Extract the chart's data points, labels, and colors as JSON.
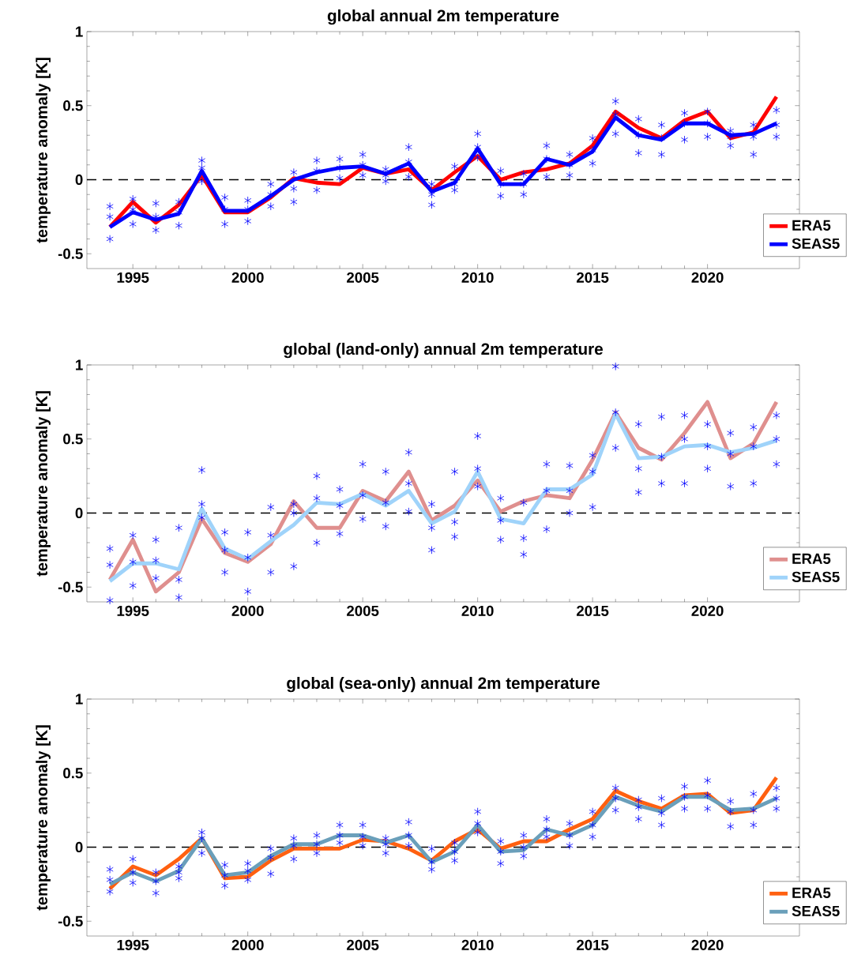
{
  "chart_data": [
    {
      "type": "line",
      "title": "global annual 2m temperature",
      "ylabel": "temperature anomaly  [K]",
      "x": [
        1994,
        1995,
        1996,
        1997,
        1998,
        1999,
        2000,
        2001,
        2002,
        2003,
        2004,
        2005,
        2006,
        2007,
        2008,
        2009,
        2010,
        2011,
        2012,
        2013,
        2014,
        2015,
        2016,
        2017,
        2018,
        2019,
        2020,
        2021,
        2022,
        2023
      ],
      "xlim": [
        1993,
        2024
      ],
      "ylim": [
        -0.6,
        1
      ],
      "xticks": [
        1995,
        2000,
        2005,
        2010,
        2015,
        2020
      ],
      "yticks": [
        -0.5,
        0,
        0.5,
        1
      ],
      "legend": "bottom right",
      "ref_lines": [
        {
          "axis": "y",
          "value": 0,
          "color": "#000000",
          "line_style": "dashed"
        }
      ],
      "series": [
        {
          "type": "scatter",
          "color": "#0000ff",
          "marker": "cross",
          "x": [
            1994,
            1994,
            1994,
            1995,
            1995,
            1995,
            1996,
            1996,
            1996,
            1997,
            1997,
            1997,
            1998,
            1998,
            1998,
            1999,
            1999,
            1999,
            2000,
            2000,
            2000,
            2001,
            2001,
            2001,
            2002,
            2002,
            2002,
            2003,
            2003,
            2003,
            2004,
            2004,
            2004,
            2005,
            2005,
            2005,
            2006,
            2006,
            2006,
            2007,
            2007,
            2007,
            2008,
            2008,
            2008,
            2009,
            2009,
            2009,
            2010,
            2010,
            2010,
            2011,
            2011,
            2011,
            2012,
            2012,
            2012,
            2013,
            2013,
            2013,
            2014,
            2014,
            2014,
            2015,
            2015,
            2015,
            2016,
            2016,
            2016,
            2017,
            2017,
            2017,
            2018,
            2018,
            2018,
            2019,
            2019,
            2019,
            2020,
            2020,
            2020,
            2021,
            2021,
            2021,
            2022,
            2022,
            2022,
            2023,
            2023,
            2023
          ],
          "values": [
            -0.18,
            -0.25,
            -0.4,
            -0.13,
            -0.2,
            -0.3,
            -0.16,
            -0.25,
            -0.34,
            -0.15,
            -0.22,
            -0.31,
            0.13,
            0.08,
            -0.01,
            -0.12,
            -0.2,
            -0.3,
            -0.14,
            -0.2,
            -0.28,
            -0.03,
            -0.1,
            -0.18,
            0.05,
            -0.06,
            -0.15,
            0.13,
            0.06,
            -0.07,
            0.14,
            0.08,
            0.01,
            0.17,
            0.1,
            0.03,
            0.07,
            0.03,
            -0.01,
            0.22,
            0.12,
            0.02,
            -0.03,
            -0.1,
            -0.17,
            0.09,
            -0.03,
            -0.07,
            0.31,
            0.22,
            0.15,
            0.06,
            -0.03,
            -0.11,
            0.04,
            -0.03,
            -0.1,
            0.23,
            0.14,
            0.02,
            0.17,
            0.1,
            0.03,
            0.28,
            0.2,
            0.11,
            0.53,
            0.44,
            0.31,
            0.41,
            0.3,
            0.18,
            0.37,
            0.28,
            0.17,
            0.45,
            0.38,
            0.27,
            0.46,
            0.38,
            0.29,
            0.33,
            0.29,
            0.23,
            0.37,
            0.29,
            0.17,
            0.47,
            0.37,
            0.29
          ]
        },
        {
          "name": "ERA5",
          "color": "#ff0000",
          "values": [
            -0.32,
            -0.15,
            -0.29,
            -0.17,
            0.03,
            -0.22,
            -0.22,
            -0.12,
            0.01,
            -0.02,
            -0.03,
            0.08,
            0.04,
            0.07,
            -0.07,
            0.05,
            0.16,
            0.0,
            0.05,
            0.07,
            0.11,
            0.23,
            0.46,
            0.35,
            0.28,
            0.4,
            0.46,
            0.28,
            0.32,
            0.56
          ]
        },
        {
          "name": "SEAS5",
          "color": "#0000ff",
          "values": [
            -0.32,
            -0.22,
            -0.27,
            -0.23,
            0.06,
            -0.21,
            -0.21,
            -0.11,
            0.0,
            0.05,
            0.08,
            0.09,
            0.04,
            0.11,
            -0.08,
            -0.02,
            0.21,
            -0.03,
            -0.03,
            0.14,
            0.1,
            0.19,
            0.42,
            0.3,
            0.27,
            0.38,
            0.38,
            0.3,
            0.31,
            0.38
          ]
        }
      ]
    },
    {
      "type": "line",
      "title": "global (land-only) annual 2m temperature",
      "ylabel": "temperature anomaly  [K]",
      "x": [
        1994,
        1995,
        1996,
        1997,
        1998,
        1999,
        2000,
        2001,
        2002,
        2003,
        2004,
        2005,
        2006,
        2007,
        2008,
        2009,
        2010,
        2011,
        2012,
        2013,
        2014,
        2015,
        2016,
        2017,
        2018,
        2019,
        2020,
        2021,
        2022,
        2023
      ],
      "xlim": [
        1993,
        2024
      ],
      "ylim": [
        -0.6,
        1
      ],
      "xticks": [
        1995,
        2000,
        2005,
        2010,
        2015,
        2020
      ],
      "yticks": [
        -0.5,
        0,
        0.5,
        1
      ],
      "legend": "bottom right",
      "ref_lines": [
        {
          "axis": "y",
          "value": 0,
          "color": "#000000",
          "line_style": "dashed"
        }
      ],
      "series": [
        {
          "type": "scatter",
          "color": "#0000ff",
          "marker": "cross",
          "x": [
            1994,
            1994,
            1994,
            1995,
            1995,
            1995,
            1996,
            1996,
            1996,
            1997,
            1997,
            1997,
            1998,
            1998,
            1998,
            1999,
            1999,
            1999,
            2000,
            2000,
            2000,
            2001,
            2001,
            2001,
            2002,
            2002,
            2002,
            2003,
            2003,
            2003,
            2004,
            2004,
            2004,
            2005,
            2005,
            2005,
            2006,
            2006,
            2006,
            2007,
            2007,
            2007,
            2008,
            2008,
            2008,
            2009,
            2009,
            2009,
            2010,
            2010,
            2010,
            2011,
            2011,
            2011,
            2012,
            2012,
            2012,
            2013,
            2013,
            2013,
            2014,
            2014,
            2014,
            2015,
            2015,
            2015,
            2016,
            2016,
            2016,
            2017,
            2017,
            2017,
            2018,
            2018,
            2018,
            2019,
            2019,
            2019,
            2020,
            2020,
            2020,
            2021,
            2021,
            2021,
            2022,
            2022,
            2022,
            2023,
            2023,
            2023
          ],
          "values": [
            -0.24,
            -0.35,
            -0.59,
            -0.15,
            -0.33,
            -0.49,
            -0.18,
            -0.32,
            -0.44,
            -0.1,
            -0.45,
            -0.57,
            0.29,
            0.06,
            -0.03,
            -0.13,
            -0.25,
            -0.4,
            -0.13,
            -0.3,
            -0.53,
            0.04,
            -0.15,
            -0.4,
            0.06,
            0.0,
            -0.36,
            0.25,
            0.1,
            -0.2,
            0.16,
            0.05,
            -0.14,
            0.33,
            0.12,
            -0.04,
            0.28,
            0.07,
            -0.09,
            0.41,
            0.2,
            0.01,
            0.06,
            -0.1,
            -0.25,
            0.28,
            -0.06,
            -0.16,
            0.52,
            0.3,
            0.18,
            0.1,
            -0.05,
            -0.18,
            0.07,
            -0.17,
            -0.28,
            0.33,
            0.15,
            -0.11,
            0.32,
            0.15,
            0.0,
            0.39,
            0.28,
            0.04,
            0.99,
            0.68,
            0.44,
            0.6,
            0.3,
            0.14,
            0.65,
            0.38,
            0.2,
            0.66,
            0.5,
            0.2,
            0.6,
            0.45,
            0.3,
            0.54,
            0.4,
            0.18,
            0.58,
            0.45,
            0.2,
            0.66,
            0.5,
            0.33
          ]
        },
        {
          "name": "ERA5",
          "color": "#df8f8e",
          "values": [
            -0.45,
            -0.18,
            -0.53,
            -0.4,
            -0.04,
            -0.27,
            -0.33,
            -0.21,
            0.08,
            -0.1,
            -0.1,
            0.15,
            0.08,
            0.28,
            -0.05,
            0.05,
            0.22,
            0.01,
            0.08,
            0.12,
            0.1,
            0.36,
            0.68,
            0.44,
            0.36,
            0.54,
            0.75,
            0.37,
            0.47,
            0.75
          ]
        },
        {
          "name": "SEAS5",
          "color": "#9fd3fa",
          "values": [
            -0.46,
            -0.34,
            -0.34,
            -0.38,
            0.03,
            -0.24,
            -0.31,
            -0.19,
            -0.08,
            0.07,
            0.06,
            0.13,
            0.05,
            0.15,
            -0.07,
            0.01,
            0.28,
            -0.04,
            -0.07,
            0.16,
            0.16,
            0.26,
            0.67,
            0.37,
            0.38,
            0.45,
            0.46,
            0.41,
            0.44,
            0.49
          ]
        }
      ]
    },
    {
      "type": "line",
      "title": "global (sea-only) annual 2m temperature",
      "ylabel": "temperature anomaly  [K]",
      "x": [
        1994,
        1995,
        1996,
        1997,
        1998,
        1999,
        2000,
        2001,
        2002,
        2003,
        2004,
        2005,
        2006,
        2007,
        2008,
        2009,
        2010,
        2011,
        2012,
        2013,
        2014,
        2015,
        2016,
        2017,
        2018,
        2019,
        2020,
        2021,
        2022,
        2023
      ],
      "xlim": [
        1993,
        2024
      ],
      "ylim": [
        -0.6,
        1
      ],
      "xticks": [
        1995,
        2000,
        2005,
        2010,
        2015,
        2020
      ],
      "yticks": [
        -0.5,
        0,
        0.5,
        1
      ],
      "legend": "bottom right",
      "ref_lines": [
        {
          "axis": "y",
          "value": 0,
          "color": "#000000",
          "line_style": "dashed"
        }
      ],
      "series": [
        {
          "type": "scatter",
          "color": "#0000ff",
          "marker": "cross",
          "x": [
            1994,
            1994,
            1994,
            1995,
            1995,
            1995,
            1996,
            1996,
            1996,
            1997,
            1997,
            1997,
            1998,
            1998,
            1998,
            1999,
            1999,
            1999,
            2000,
            2000,
            2000,
            2001,
            2001,
            2001,
            2002,
            2002,
            2002,
            2003,
            2003,
            2003,
            2004,
            2004,
            2004,
            2005,
            2005,
            2005,
            2006,
            2006,
            2006,
            2007,
            2007,
            2007,
            2008,
            2008,
            2008,
            2009,
            2009,
            2009,
            2010,
            2010,
            2010,
            2011,
            2011,
            2011,
            2012,
            2012,
            2012,
            2013,
            2013,
            2013,
            2014,
            2014,
            2014,
            2015,
            2015,
            2015,
            2016,
            2016,
            2016,
            2017,
            2017,
            2017,
            2018,
            2018,
            2018,
            2019,
            2019,
            2019,
            2020,
            2020,
            2020,
            2021,
            2021,
            2021,
            2022,
            2022,
            2022,
            2023,
            2023,
            2023
          ],
          "values": [
            -0.15,
            -0.22,
            -0.3,
            -0.08,
            -0.17,
            -0.24,
            -0.17,
            -0.23,
            -0.31,
            -0.13,
            -0.17,
            -0.21,
            0.1,
            0.06,
            -0.04,
            -0.12,
            -0.19,
            -0.26,
            -0.11,
            -0.16,
            -0.22,
            -0.01,
            -0.07,
            -0.18,
            0.06,
            0.01,
            -0.08,
            0.08,
            0.02,
            -0.04,
            0.15,
            0.08,
            0.03,
            0.15,
            0.07,
            0.01,
            0.06,
            0.02,
            -0.04,
            0.17,
            0.08,
            0.01,
            -0.01,
            -0.1,
            -0.15,
            0.03,
            -0.03,
            -0.09,
            0.24,
            0.16,
            0.1,
            0.04,
            -0.03,
            -0.11,
            0.08,
            0.0,
            -0.06,
            0.19,
            0.12,
            0.07,
            0.16,
            0.08,
            0.01,
            0.24,
            0.15,
            0.07,
            0.4,
            0.33,
            0.25,
            0.32,
            0.27,
            0.19,
            0.33,
            0.23,
            0.15,
            0.41,
            0.34,
            0.26,
            0.45,
            0.35,
            0.26,
            0.31,
            0.24,
            0.14,
            0.36,
            0.25,
            0.15,
            0.4,
            0.33,
            0.26
          ]
        },
        {
          "name": "ERA5",
          "color": "#ff6010",
          "values": [
            -0.28,
            -0.13,
            -0.19,
            -0.08,
            0.06,
            -0.21,
            -0.2,
            -0.09,
            -0.01,
            -0.01,
            -0.01,
            0.05,
            0.04,
            -0.01,
            -0.09,
            0.04,
            0.12,
            -0.01,
            0.04,
            0.04,
            0.12,
            0.19,
            0.38,
            0.31,
            0.26,
            0.35,
            0.36,
            0.23,
            0.25,
            0.47
          ]
        },
        {
          "name": "SEAS5",
          "color": "#6a9fba",
          "values": [
            -0.25,
            -0.17,
            -0.23,
            -0.16,
            0.06,
            -0.19,
            -0.17,
            -0.06,
            0.02,
            0.02,
            0.08,
            0.08,
            0.03,
            0.08,
            -0.1,
            -0.03,
            0.15,
            -0.03,
            -0.02,
            0.12,
            0.08,
            0.15,
            0.34,
            0.28,
            0.24,
            0.34,
            0.34,
            0.25,
            0.26,
            0.33
          ]
        }
      ]
    }
  ]
}
